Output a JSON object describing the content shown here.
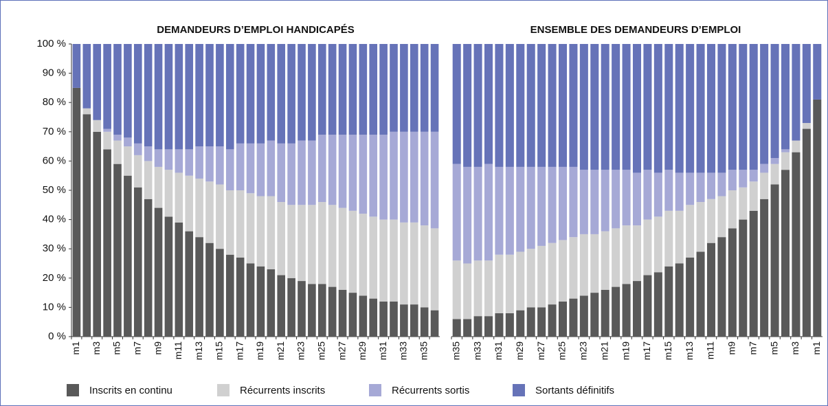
{
  "chart_data": [
    {
      "type": "stacked_bar",
      "title": "DEMANDEURS D’EMPLOI HANDICAPÉS",
      "categories": [
        "m1",
        null,
        "m3",
        null,
        "m5",
        null,
        "m7",
        null,
        "m9",
        null,
        "m11",
        null,
        "m13",
        null,
        "m15",
        null,
        "m17",
        null,
        "m19",
        null,
        "m21",
        null,
        "m23",
        null,
        "m25",
        null,
        "m27",
        null,
        "m29",
        null,
        "m31",
        null,
        "m33",
        null,
        "m35",
        null
      ],
      "series": [
        {
          "name": "Inscrits en continu",
          "color": "#595959",
          "values": [
            85,
            76,
            70,
            64,
            59,
            55,
            51,
            47,
            44,
            41,
            39,
            36,
            34,
            32,
            30,
            28,
            27,
            25,
            24,
            23,
            21,
            20,
            19,
            18,
            18,
            17,
            16,
            15,
            14,
            13,
            12,
            12,
            11,
            11,
            10,
            9
          ]
        },
        {
          "name": "Récurrents inscrits",
          "color": "#d0d0d0",
          "values": [
            0,
            2,
            4,
            6,
            8,
            10,
            11,
            13,
            14,
            16,
            17,
            19,
            20,
            21,
            22,
            22,
            23,
            24,
            24,
            25,
            25,
            25,
            26,
            27,
            28,
            28,
            28,
            28,
            28,
            28,
            28,
            28,
            28,
            28,
            28,
            28
          ]
        },
        {
          "name": "Récurrents sortis",
          "color": "#a6a9d6",
          "values": [
            0,
            0,
            0,
            1,
            2,
            3,
            4,
            5,
            6,
            7,
            8,
            9,
            11,
            12,
            13,
            14,
            16,
            17,
            18,
            19,
            20,
            21,
            22,
            22,
            23,
            24,
            25,
            26,
            27,
            28,
            29,
            30,
            31,
            31,
            32,
            33
          ]
        },
        {
          "name": "Sortants définitifs",
          "color": "#6673b8",
          "values": [
            15,
            22,
            26,
            29,
            31,
            32,
            34,
            35,
            36,
            36,
            36,
            36,
            35,
            35,
            35,
            36,
            34,
            34,
            34,
            33,
            34,
            34,
            33,
            33,
            31,
            31,
            31,
            31,
            31,
            31,
            31,
            30,
            30,
            30,
            30,
            30
          ]
        }
      ],
      "ylim": [
        0,
        100
      ],
      "yticks": [
        {
          "value": 0,
          "label": "0 %"
        },
        {
          "value": 10,
          "label": "10 %"
        },
        {
          "value": 20,
          "label": "20 %"
        },
        {
          "value": 30,
          "label": "30 %"
        },
        {
          "value": 40,
          "label": "40 %"
        },
        {
          "value": 50,
          "label": "50 %"
        },
        {
          "value": 60,
          "label": "60 %"
        },
        {
          "value": 70,
          "label": "70 %"
        },
        {
          "value": 80,
          "label": "80 %"
        },
        {
          "value": 90,
          "label": "90 %"
        },
        {
          "value": 100,
          "label": "100 %"
        }
      ]
    },
    {
      "type": "stacked_bar",
      "title": "ENSEMBLE DES DEMANDEURS D’EMPLOI",
      "categories": [
        "m35",
        null,
        "m33",
        null,
        "m31",
        null,
        "m29",
        null,
        "m27",
        null,
        "m25",
        null,
        "m23",
        null,
        "m21",
        null,
        "m19",
        null,
        "m17",
        null,
        "m15",
        null,
        "m13",
        null,
        "m11",
        null,
        "m9",
        null,
        "m7",
        null,
        "m5",
        null,
        "m3",
        null,
        "m1"
      ],
      "series": [
        {
          "color": "#595959",
          "values": [
            6,
            6,
            7,
            7,
            8,
            8,
            9,
            10,
            10,
            11,
            12,
            13,
            14,
            15,
            16,
            17,
            18,
            19,
            21,
            22,
            24,
            25,
            27,
            29,
            32,
            34,
            37,
            40,
            43,
            47,
            52,
            57,
            63,
            71,
            81
          ]
        },
        {
          "color": "#d0d0d0",
          "values": [
            20,
            19,
            19,
            19,
            20,
            20,
            20,
            20,
            21,
            21,
            21,
            21,
            21,
            20,
            20,
            20,
            20,
            19,
            19,
            19,
            19,
            18,
            18,
            17,
            15,
            14,
            13,
            11,
            10,
            9,
            7,
            6,
            4,
            2,
            0
          ]
        },
        {
          "color": "#a6a9d6",
          "values": [
            33,
            33,
            32,
            33,
            30,
            30,
            29,
            28,
            27,
            26,
            25,
            24,
            22,
            22,
            21,
            20,
            19,
            18,
            17,
            15,
            14,
            13,
            11,
            10,
            9,
            8,
            7,
            6,
            4,
            3,
            2,
            1,
            0,
            0,
            0
          ]
        },
        {
          "color": "#6673b8",
          "values": [
            41,
            42,
            42,
            41,
            42,
            42,
            42,
            42,
            42,
            42,
            42,
            42,
            43,
            43,
            43,
            43,
            43,
            44,
            43,
            44,
            43,
            44,
            44,
            44,
            44,
            44,
            43,
            43,
            43,
            41,
            39,
            36,
            33,
            27,
            19
          ]
        }
      ],
      "ylim": [
        0,
        100
      ]
    }
  ]
}
